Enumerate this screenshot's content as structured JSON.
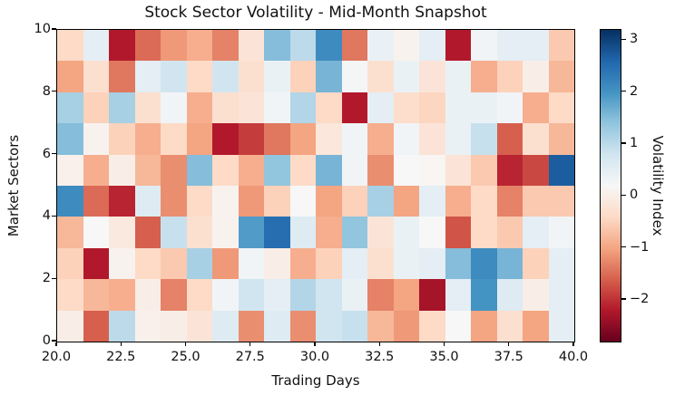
{
  "chart_data": {
    "type": "heatmap",
    "title": "Stock Sector Volatility - Mid-Month Snapshot",
    "xlabel": "Trading Days",
    "ylabel": "Market Sectors",
    "colorbar_label": "Volatility Index",
    "x_range": [
      20,
      40
    ],
    "y_range": [
      0,
      10
    ],
    "grid_shape": {
      "rows": 10,
      "cols": 20
    },
    "x_ticks": [
      {
        "v": 20.0,
        "label": "20.0"
      },
      {
        "v": 22.5,
        "label": "22.5"
      },
      {
        "v": 25.0,
        "label": "25.0"
      },
      {
        "v": 27.5,
        "label": "27.5"
      },
      {
        "v": 30.0,
        "label": "30.0"
      },
      {
        "v": 32.5,
        "label": "32.5"
      },
      {
        "v": 35.0,
        "label": "35.0"
      },
      {
        "v": 37.5,
        "label": "37.5"
      },
      {
        "v": 40.0,
        "label": "40.0"
      }
    ],
    "y_ticks": [
      {
        "v": 0,
        "label": "0"
      },
      {
        "v": 2,
        "label": "2"
      },
      {
        "v": 4,
        "label": "4"
      },
      {
        "v": 6,
        "label": "6"
      },
      {
        "v": 8,
        "label": "8"
      },
      {
        "v": 10,
        "label": "10"
      }
    ],
    "colorbar_ticks": [
      {
        "v": 3,
        "label": "3"
      },
      {
        "v": 2,
        "label": "2"
      },
      {
        "v": 1,
        "label": "1"
      },
      {
        "v": 0,
        "label": "0"
      },
      {
        "v": -1,
        "label": "−1"
      },
      {
        "v": -2,
        "label": "−2"
      }
    ],
    "vmin": -2.8,
    "vmax": 3.2,
    "colormap": {
      "name": "RdBu",
      "anchors": [
        "#67001f",
        "#b2182b",
        "#d6604d",
        "#f4a582",
        "#fddbc7",
        "#f7f7f7",
        "#d1e5f0",
        "#92c5de",
        "#4393c3",
        "#2166ac",
        "#053061"
      ]
    },
    "rows_order": "top_to_bottom_sector_10_to_1",
    "values": [
      [
        -0.4,
        0.5,
        -2.2,
        -1.5,
        -1.1,
        -0.9,
        -1.3,
        -0.2,
        1.5,
        1.0,
        2.1,
        -1.4,
        0.4,
        0.1,
        0.5,
        -2.2,
        0.3,
        0.5,
        0.5,
        -0.6
      ],
      [
        -1.0,
        -0.3,
        -1.4,
        0.5,
        0.8,
        -0.4,
        0.8,
        -0.3,
        0.4,
        -0.5,
        1.6,
        0.25,
        -0.3,
        0.4,
        -0.2,
        0.4,
        -0.9,
        -0.5,
        0.0,
        -0.8
      ],
      [
        1.2,
        -0.5,
        1.2,
        -0.3,
        0.3,
        -0.9,
        -0.3,
        -0.2,
        0.3,
        1.1,
        -0.4,
        -2.2,
        0.5,
        -0.35,
        -0.45,
        0.4,
        0.4,
        0.3,
        -0.9,
        -0.4
      ],
      [
        1.5,
        0.1,
        -0.5,
        -0.9,
        -0.4,
        -1.0,
        -2.2,
        -1.9,
        -1.4,
        -1.0,
        -0.15,
        0.3,
        -0.9,
        0.3,
        -0.2,
        0.4,
        0.9,
        -1.6,
        -0.3,
        -0.8
      ],
      [
        0.05,
        -0.9,
        0.0,
        -0.8,
        -1.2,
        1.5,
        -0.4,
        -0.9,
        1.4,
        -0.4,
        1.6,
        0.3,
        -1.2,
        0.2,
        0.15,
        -0.2,
        -0.6,
        -2.1,
        -1.8,
        2.7
      ],
      [
        2.1,
        -1.5,
        -2.1,
        0.6,
        -1.2,
        -0.4,
        0.1,
        -1.1,
        -0.5,
        0.2,
        -1.0,
        -0.5,
        1.2,
        -1.0,
        0.5,
        -0.9,
        -0.4,
        -1.3,
        -0.6,
        -0.6
      ],
      [
        -0.8,
        0.2,
        -0.1,
        -1.6,
        0.9,
        -0.3,
        0.1,
        1.9,
        2.5,
        0.6,
        -0.9,
        1.4,
        -0.2,
        0.4,
        0.2,
        -1.7,
        -0.4,
        -0.6,
        0.5,
        0.3
      ],
      [
        -0.5,
        -2.2,
        0.1,
        -0.4,
        -0.6,
        1.2,
        -1.1,
        0.3,
        0.0,
        -0.9,
        -0.5,
        0.5,
        -0.3,
        0.4,
        0.5,
        1.5,
        2.1,
        1.6,
        -0.5,
        0.5
      ],
      [
        -0.4,
        -0.8,
        -0.9,
        0.0,
        -1.3,
        -0.4,
        0.3,
        0.8,
        0.5,
        1.1,
        0.8,
        0.4,
        -1.3,
        -1.0,
        -2.3,
        0.5,
        2.0,
        0.6,
        0.0,
        0.5
      ],
      [
        0.0,
        -1.6,
        1.0,
        0.05,
        0.0,
        -0.2,
        0.6,
        -1.2,
        0.6,
        -1.2,
        0.8,
        0.9,
        -0.8,
        -1.1,
        -0.4,
        0.2,
        -1.0,
        -0.3,
        -1.0,
        0.5
      ]
    ]
  }
}
